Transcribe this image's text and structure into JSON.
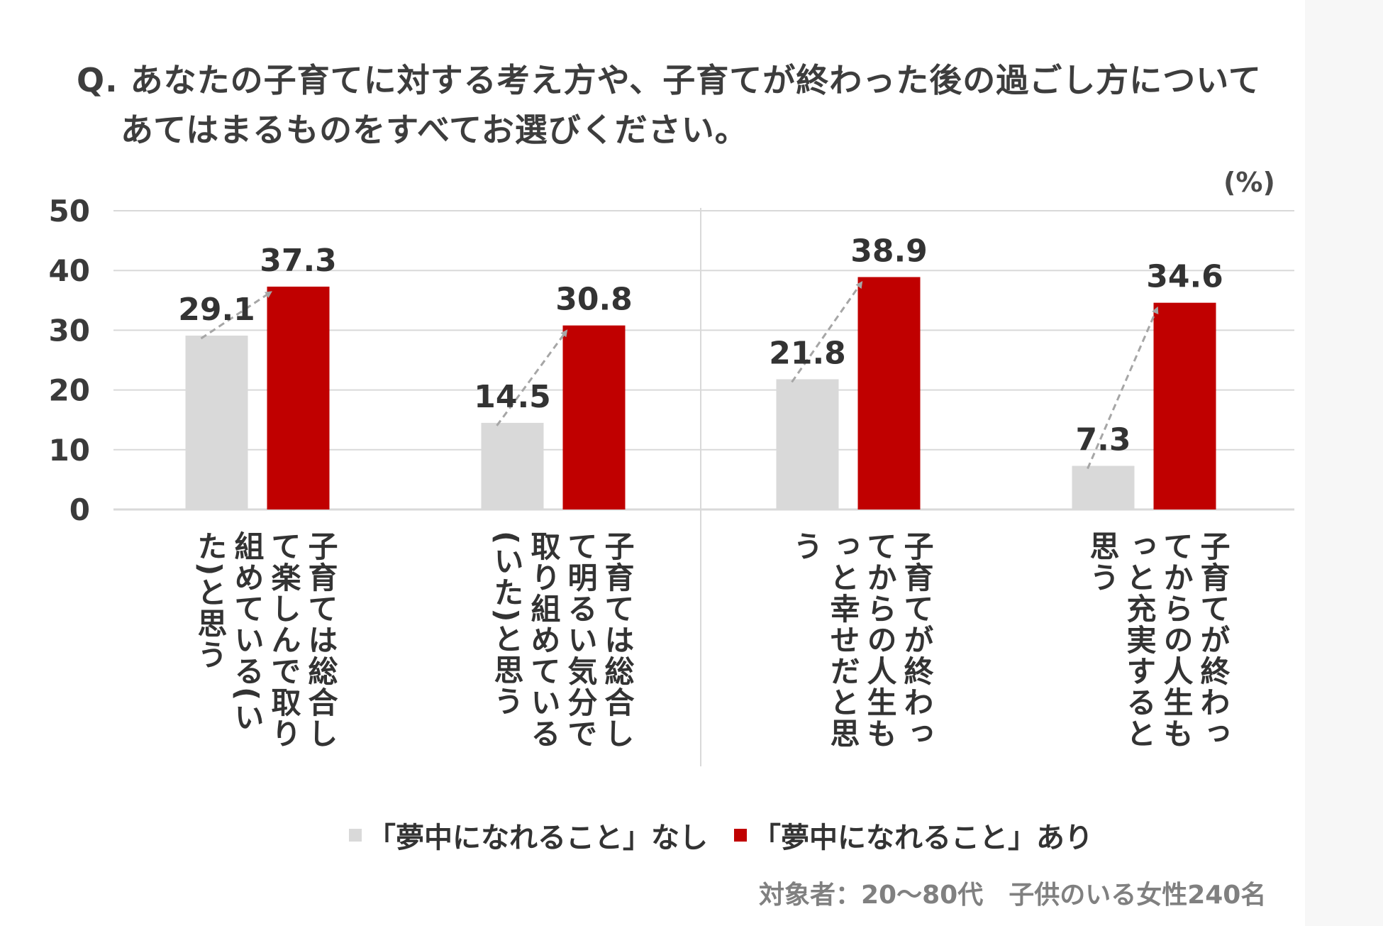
{
  "question": {
    "line1": "Q. あなたの子育てに対する考え方や、子育てが終わった後の過ごし方について",
    "line2": "あてはまるものをすべてお選びください。"
  },
  "unit_label": "(%)",
  "source_note": "対象者：20～80代　子供のいる女性240名",
  "colors": {
    "without": "#d9d9d9",
    "with": "#c00000",
    "grid": "#d9d9d9",
    "arrow": "#a6a6a6"
  },
  "chart_data": {
    "type": "bar",
    "ylim": [
      0,
      50
    ],
    "yticks": [
      "0",
      "10",
      "20",
      "30",
      "40",
      "50"
    ],
    "categories": [
      "子育ては総合して楽しんで取り組めている(いた)と思う",
      "子育ては総合して明るい気分で取り組めている(いた)と思う",
      "子育てが終わってからの人生もっと幸せだと思う",
      "子育てが終わってからの人生もっと充実すると思う"
    ],
    "series": [
      {
        "name": "「夢中になれること」なし",
        "values": [
          29.1,
          14.5,
          21.8,
          7.3
        ],
        "labels": [
          "29.1",
          "14.5",
          "21.8",
          "7.3"
        ]
      },
      {
        "name": "「夢中になれること」あり",
        "values": [
          37.3,
          30.8,
          38.9,
          34.6
        ],
        "labels": [
          "37.3",
          "30.8",
          "38.9",
          "34.6"
        ]
      }
    ],
    "legend_position": "bottom",
    "grid": true
  }
}
